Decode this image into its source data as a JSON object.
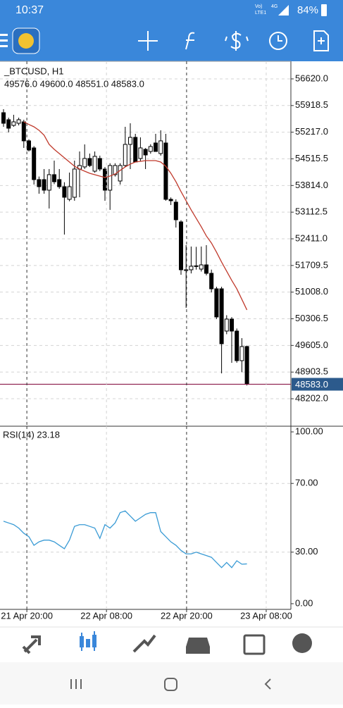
{
  "status_bar": {
    "time": "10:37",
    "network_top": "Vo)",
    "network_mid": "4G",
    "network_bottom": "LTE1",
    "battery": "84%"
  },
  "chart_data": [
    {
      "type": "candlestick",
      "title": "_BTCUSD, H1",
      "subtitle": "49576.0 49600.0 48551.0 48583.0",
      "open": [
        55730,
        55545,
        55396,
        55452,
        55489,
        54989,
        54803,
        53969,
        53969,
        53691,
        54099,
        53969,
        53783,
        53450,
        53505,
        54247,
        54303,
        54525,
        54191,
        54525,
        54247,
        53691,
        54099,
        53932,
        54340,
        54896,
        55081,
        54525,
        54766,
        54710,
        54933,
        54655,
        54933,
        53450,
        53376,
        52856,
        51596,
        51596,
        51689,
        51614,
        51725,
        51503,
        51095,
        51095,
        49983,
        50298,
        49983,
        49204,
        49576
      ],
      "high": [
        55823,
        55600,
        55675,
        55600,
        55545,
        55030,
        54850,
        54050,
        54247,
        54247,
        54469,
        54247,
        53900,
        54154,
        54469,
        54710,
        54896,
        54655,
        54710,
        54600,
        54300,
        54400,
        54400,
        54400,
        55359,
        55452,
        55174,
        55081,
        54800,
        54900,
        55174,
        55267,
        55174,
        53500,
        53450,
        52900,
        52245,
        52208,
        52200,
        52208,
        52245,
        51600,
        51150,
        51150,
        50400,
        50350,
        50050,
        49797,
        49600
      ],
      "low": [
        55359,
        55211,
        55359,
        55396,
        54803,
        54710,
        53839,
        53598,
        53598,
        53209,
        53850,
        53728,
        52523,
        53400,
        53413,
        53505,
        54250,
        54300,
        54150,
        54191,
        53413,
        53172,
        54050,
        53839,
        54300,
        54247,
        54469,
        54450,
        54247,
        54650,
        54700,
        54600,
        53413,
        53300,
        52708,
        51466,
        50595,
        51500,
        51600,
        51550,
        51450,
        51000,
        50300,
        48870,
        49900,
        49148,
        49150,
        48900,
        48551
      ],
      "close": [
        55452,
        55322,
        55489,
        55545,
        54989,
        54747,
        53969,
        53783,
        53691,
        54099,
        53913,
        53783,
        53505,
        53783,
        54247,
        54340,
        54525,
        54340,
        54581,
        54247,
        53691,
        54340,
        54340,
        54340,
        54896,
        55081,
        54433,
        54803,
        54618,
        54840,
        54710,
        54989,
        53450,
        53413,
        52912,
        51596,
        51580,
        51689,
        51700,
        51725,
        51503,
        51095,
        50354,
        49649,
        50298,
        49983,
        49204,
        49575,
        48583
      ],
      "overlay_line": {
        "color": "#c0392b",
        "values": [
          null,
          null,
          null,
          null,
          55489,
          55420,
          55359,
          55267,
          55137,
          54896,
          54766,
          54655,
          54544,
          54432,
          54321,
          54247,
          54191,
          54136,
          54099,
          54062,
          54025,
          54062,
          54117,
          54210,
          54303,
          54377,
          54432,
          54451,
          54469,
          54469,
          54469,
          54432,
          54321,
          54136,
          53913,
          53654,
          53413,
          53172,
          52949,
          52727,
          52486,
          52300,
          52059,
          51800,
          51559,
          51318,
          51095,
          50817,
          50539
        ]
      },
      "price_line": {
        "value": 48583,
        "label": "48583.0",
        "color": "#8b1a4a"
      },
      "ylim": [
        47479,
        57083
      ],
      "yticks": [
        {
          "value": 56620,
          "label": "56620.0"
        },
        {
          "value": 55918.5,
          "label": "55918.5"
        },
        {
          "value": 55217,
          "label": "55217.0"
        },
        {
          "value": 54515.5,
          "label": "54515.5"
        },
        {
          "value": 53814,
          "label": "53814.0"
        },
        {
          "value": 53112.5,
          "label": "53112.5"
        },
        {
          "value": 52411,
          "label": "52411.0"
        },
        {
          "value": 51709.5,
          "label": "51709.5"
        },
        {
          "value": 51008,
          "label": "51008.0"
        },
        {
          "value": 50306.5,
          "label": "50306.5"
        },
        {
          "value": 49605,
          "label": "49605.0"
        },
        {
          "value": 48903.5,
          "label": "48903.5"
        },
        {
          "value": 48202,
          "label": "48202.0"
        }
      ],
      "grid": true
    },
    {
      "type": "line",
      "title": "RSI(14) 23.18",
      "color": "#3a9bd5",
      "values": [
        48,
        47,
        46,
        44,
        41,
        39,
        34,
        36,
        37,
        37,
        36,
        34,
        32,
        37,
        45,
        46,
        46,
        45,
        44,
        38,
        46,
        44,
        47,
        53,
        54,
        51,
        48,
        50,
        52,
        53,
        53,
        42,
        39,
        36,
        34,
        31,
        29,
        29,
        30,
        29,
        28,
        27,
        24,
        21,
        24,
        21,
        25,
        23,
        23.18
      ],
      "ylim": [
        -3.3,
        103.3
      ],
      "yticks": [
        {
          "value": 100,
          "label": "100.00"
        },
        {
          "value": 70,
          "label": "70.00"
        },
        {
          "value": 30,
          "label": "30.00"
        },
        {
          "value": 0,
          "label": "0.00"
        }
      ],
      "xticks": [
        {
          "value": 4.6,
          "label": "21 Apr 20:00"
        },
        {
          "value": 20.3,
          "label": "22 Apr 08:00"
        },
        {
          "value": 36.1,
          "label": "22 Apr 20:00"
        },
        {
          "value": 51.8,
          "label": "23 Apr 08:00"
        }
      ]
    }
  ]
}
